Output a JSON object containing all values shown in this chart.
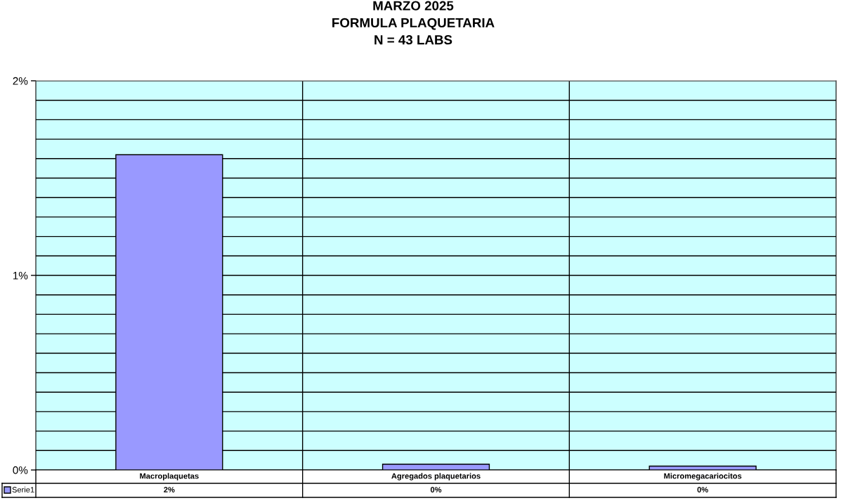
{
  "chart_data": {
    "type": "bar",
    "title": "MARZO 2025\nFORMULA PLAQUETARIA\nN = 43 LABS",
    "categories": [
      "Macroplaquetas",
      "Agregados plaquetarios",
      "Micromegacariocitos"
    ],
    "series": [
      {
        "name": "Serie1",
        "color": "#9999ff",
        "values": [
          1.62,
          0.03,
          0.02
        ],
        "value_labels": [
          "2%",
          "0%",
          "0%"
        ]
      }
    ],
    "ylim": [
      0,
      2
    ],
    "yticks": [
      {
        "value": 0,
        "label": "0%"
      },
      {
        "value": 0.1,
        "label": null
      },
      {
        "value": 0.2,
        "label": null
      },
      {
        "value": 0.3,
        "label": null
      },
      {
        "value": 0.4,
        "label": null
      },
      {
        "value": 0.5,
        "label": null
      },
      {
        "value": 0.6,
        "label": null
      },
      {
        "value": 0.7,
        "label": null
      },
      {
        "value": 0.8,
        "label": null
      },
      {
        "value": 0.9,
        "label": null
      },
      {
        "value": 1,
        "label": "1%"
      },
      {
        "value": 1.1,
        "label": null
      },
      {
        "value": 1.2,
        "label": null
      },
      {
        "value": 1.3,
        "label": null
      },
      {
        "value": 1.4,
        "label": null
      },
      {
        "value": 1.5,
        "label": null
      },
      {
        "value": 1.6,
        "label": null
      },
      {
        "value": 1.7,
        "label": null
      },
      {
        "value": 1.8,
        "label": null
      },
      {
        "value": 1.9,
        "label": null
      },
      {
        "value": 2,
        "label": "2%"
      }
    ],
    "grid": true,
    "legend": "bottom left"
  }
}
